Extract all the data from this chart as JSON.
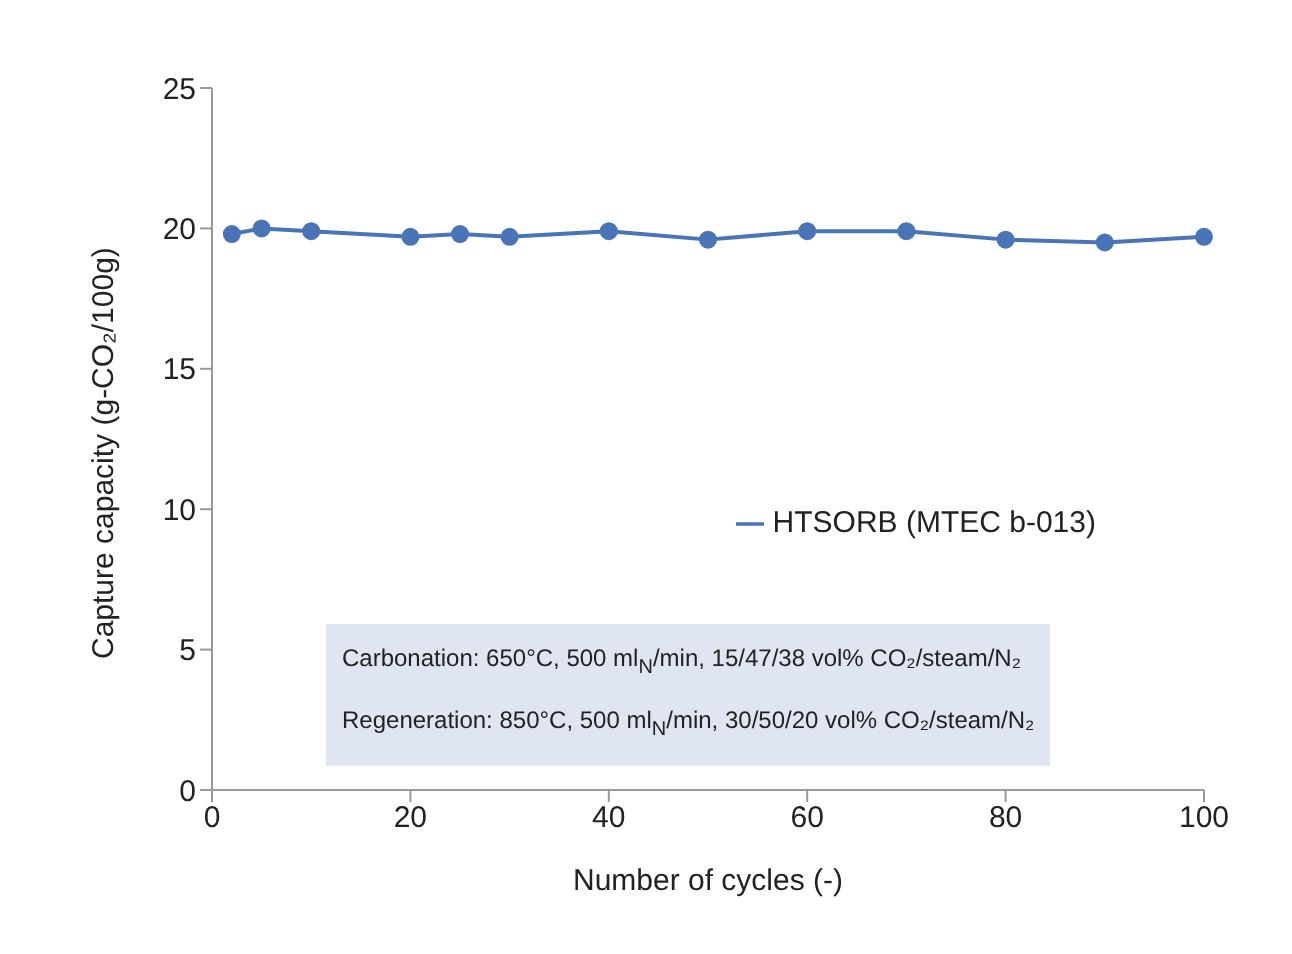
{
  "chart_data": {
    "type": "line",
    "xlabel": "Number of cycles (-)",
    "ylabel": "Capture capacity (g-CO₂/100g)",
    "x": [
      2,
      5,
      10,
      20,
      25,
      30,
      40,
      50,
      60,
      70,
      80,
      90,
      100
    ],
    "series": [
      {
        "name": "HTSORB (MTEC b-013)",
        "color": "#4a74b8",
        "values": [
          19.8,
          20.0,
          19.9,
          19.7,
          19.8,
          19.7,
          19.9,
          19.6,
          19.9,
          19.9,
          19.6,
          19.5,
          19.7
        ]
      }
    ],
    "xlim": [
      0,
      100
    ],
    "xticks": [
      0,
      20,
      40,
      60,
      80,
      100
    ],
    "ylim": [
      0,
      25
    ],
    "yticks": [
      0,
      5,
      10,
      15,
      20,
      25
    ],
    "grid": false,
    "legend": "right",
    "marker": "circle",
    "line_style": "solid",
    "annotations": [
      "Carbonation: 650°C, 500 ml$_{N}$/min, 15/47/38 vol% CO₂/steam/N₂",
      "Regeneration: 850°C, 500 ml$_{N}$/min, 30/50/20 vol% CO₂/steam/N₂"
    ]
  }
}
